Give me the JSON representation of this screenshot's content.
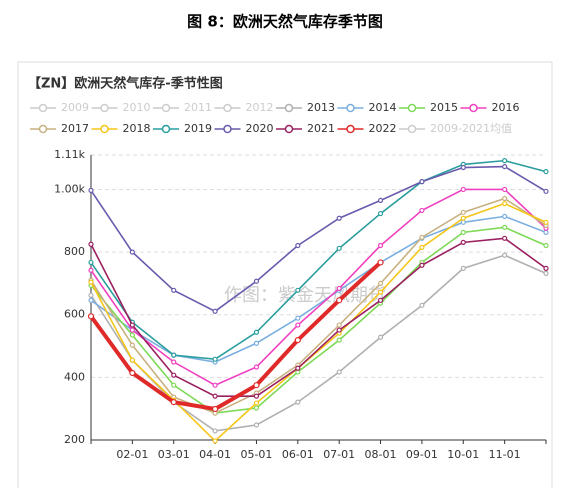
{
  "chart_data": {
    "type": "line",
    "caption": "图 8：欧洲天然气库存季节图",
    "title": "【ZN】欧洲天然气库存-季节性图",
    "watermark": "作图：紫金天风期货",
    "legend_inactive_before": [
      "2009",
      "2010",
      "2011",
      "2012"
    ],
    "legend_inactive_after": [
      "2009-2021均值"
    ],
    "categories": [
      null,
      "02-01",
      "03-01",
      "04-01",
      "05-01",
      "06-01",
      "07-01",
      "08-01",
      "09-01",
      "10-01",
      "11-01",
      null
    ],
    "ylim": [
      200,
      1110
    ],
    "yticks": [
      200,
      400,
      600,
      800,
      {
        "value": 1000,
        "label": "1.00k"
      },
      {
        "value": 1110,
        "label": "1.11k"
      }
    ],
    "grid": true,
    "series": [
      {
        "name": "2013",
        "color": "#b0b0b0",
        "values": [
          662,
          455,
          321,
          229,
          248,
          321,
          417,
          528,
          630,
          748,
          790,
          732
        ]
      },
      {
        "name": "2014",
        "color": "#7aaee0",
        "values": [
          646,
          551,
          471,
          449,
          509,
          589,
          678,
          767,
          844,
          895,
          914,
          863
        ]
      },
      {
        "name": "2015",
        "color": "#7ed957",
        "values": [
          694,
          535,
          375,
          286,
          302,
          417,
          519,
          637,
          767,
          863,
          879,
          821
        ]
      },
      {
        "name": "2016",
        "color": "#f040c0",
        "values": [
          742,
          551,
          449,
          375,
          433,
          567,
          684,
          821,
          933,
          1000,
          1000,
          876
        ]
      },
      {
        "name": "2017",
        "color": "#c8b080",
        "values": [
          710,
          503,
          337,
          286,
          350,
          439,
          567,
          700,
          847,
          927,
          971,
          885
        ]
      },
      {
        "name": "2018",
        "color": "#f5c518",
        "values": [
          704,
          455,
          327,
          197,
          318,
          429,
          541,
          672,
          815,
          908,
          955,
          895
        ]
      },
      {
        "name": "2019",
        "color": "#2a9d9d",
        "values": [
          767,
          576,
          471,
          458,
          544,
          678,
          812,
          923,
          1025,
          1080,
          1092,
          1057
        ]
      },
      {
        "name": "2020",
        "color": "#6a5aad",
        "values": [
          997,
          800,
          678,
          611,
          707,
          821,
          908,
          965,
          1025,
          1070,
          1073,
          994
        ]
      },
      {
        "name": "2021",
        "color": "#9b2060",
        "values": [
          825,
          567,
          407,
          340,
          340,
          429,
          551,
          646,
          758,
          831,
          844,
          748
        ]
      },
      {
        "name": "2022",
        "color": "#e02a2a",
        "values": [
          595,
          414,
          321,
          299,
          375,
          519,
          646,
          767,
          null,
          null,
          null,
          null
        ]
      }
    ]
  }
}
